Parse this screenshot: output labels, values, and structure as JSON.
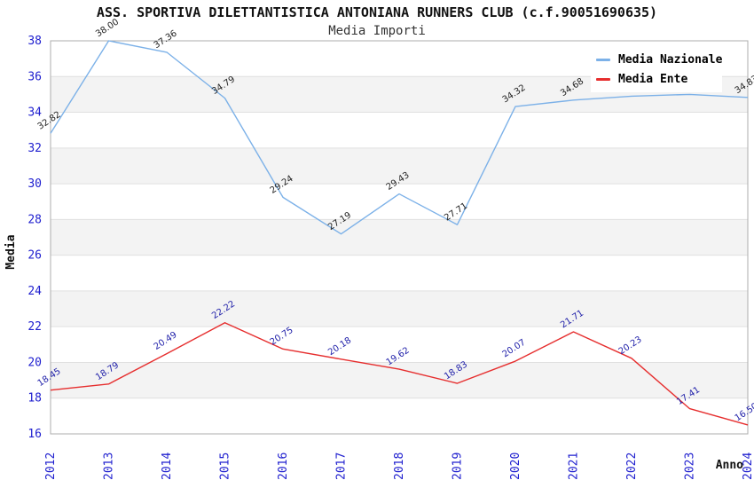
{
  "header": {
    "title": "ASS. SPORTIVA DILETTANTISTICA ANTONIANA RUNNERS CLUB (c.f.90051690635)",
    "subtitle": "Media Importi"
  },
  "chart_data": {
    "type": "line",
    "title": "ASS. SPORTIVA DILETTANTISTICA ANTONIANA RUNNERS CLUB (c.f.90051690635)",
    "subtitle": "Media Importi",
    "xlabel": "Anno",
    "ylabel": "Media",
    "categories": [
      "2012",
      "2013",
      "2014",
      "2015",
      "2016",
      "2017",
      "2018",
      "2019",
      "2020",
      "2021",
      "2022",
      "2023",
      "2024"
    ],
    "series": [
      {
        "name": "Media Nazionale",
        "color": "#7CB1E8",
        "label_color": "#222222",
        "values": [
          32.82,
          38.0,
          37.36,
          34.79,
          29.24,
          27.19,
          29.43,
          27.71,
          34.32,
          34.68,
          34.9,
          35.0,
          34.83
        ]
      },
      {
        "name": "Media Ente",
        "color": "#E62E2E",
        "label_color": "#2222AA",
        "values": [
          18.45,
          18.79,
          20.49,
          22.22,
          20.75,
          20.18,
          19.62,
          18.83,
          20.07,
          21.71,
          20.23,
          17.41,
          16.5
        ]
      }
    ],
    "ylim": [
      16,
      38
    ],
    "yticks": [
      16,
      18,
      20,
      22,
      24,
      26,
      28,
      30,
      32,
      34,
      36,
      38
    ],
    "grid": "horizontal alternating bands",
    "legend_position": "top-right",
    "note": "Media Nazionale labels for 2022 and 2023 are hidden behind the legend box; values estimated from line position.",
    "tick_color": "#2020CF"
  },
  "legend": {
    "items": [
      {
        "label": "Media Nazionale"
      },
      {
        "label": "Media Ente"
      }
    ]
  }
}
